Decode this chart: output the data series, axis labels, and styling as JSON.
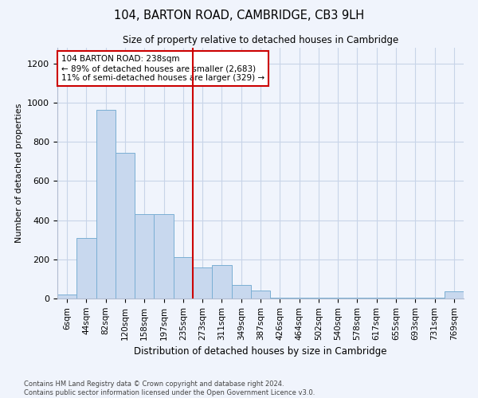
{
  "title1": "104, BARTON ROAD, CAMBRIDGE, CB3 9LH",
  "title2": "Size of property relative to detached houses in Cambridge",
  "xlabel": "Distribution of detached houses by size in Cambridge",
  "ylabel": "Number of detached properties",
  "bar_labels": [
    "6sqm",
    "44sqm",
    "82sqm",
    "120sqm",
    "158sqm",
    "197sqm",
    "235sqm",
    "273sqm",
    "311sqm",
    "349sqm",
    "387sqm",
    "426sqm",
    "464sqm",
    "502sqm",
    "540sqm",
    "578sqm",
    "617sqm",
    "655sqm",
    "693sqm",
    "731sqm",
    "769sqm"
  ],
  "bar_values": [
    20,
    310,
    965,
    745,
    430,
    430,
    210,
    160,
    170,
    70,
    40,
    5,
    5,
    5,
    5,
    5,
    5,
    5,
    5,
    5,
    35
  ],
  "bar_color": "#c8d8ee",
  "bar_edge_color": "#7aafd4",
  "vline_x_index": 6,
  "vline_color": "#cc0000",
  "annotation_text": "104 BARTON ROAD: 238sqm\n← 89% of detached houses are smaller (2,683)\n11% of semi-detached houses are larger (329) →",
  "annotation_box_color": "#cc0000",
  "ylim": [
    0,
    1280
  ],
  "yticks": [
    0,
    200,
    400,
    600,
    800,
    1000,
    1200
  ],
  "background_color": "#f0f4fc",
  "grid_color": "#c8d4e8",
  "footer1": "Contains HM Land Registry data © Crown copyright and database right 2024.",
  "footer2": "Contains public sector information licensed under the Open Government Licence v3.0."
}
